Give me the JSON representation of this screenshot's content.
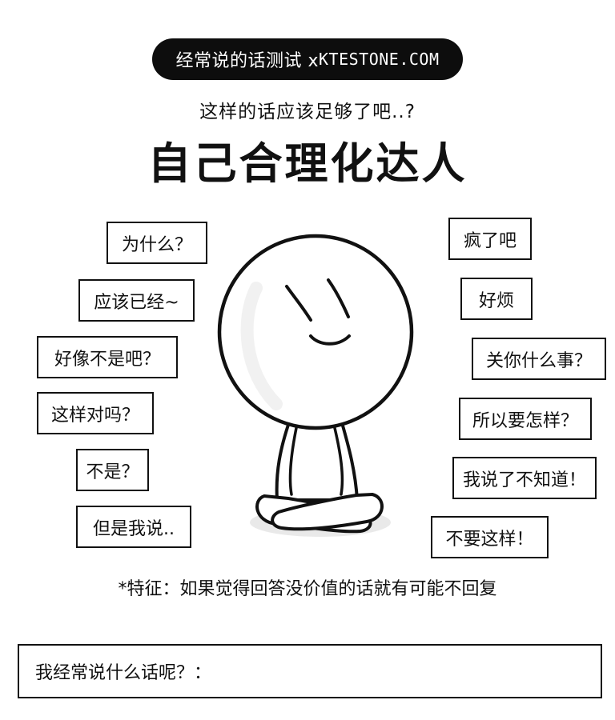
{
  "header": {
    "pill_prefix": "经常说的话测试 x ",
    "pill_brand": "KTESTONE.COM"
  },
  "subtitle": "这样的话应该足够了吧..?",
  "title": "自己合理化达人",
  "left_phrases": [
    "为什么？",
    "应该已经~",
    "好像不是吧？",
    "这样对吗？",
    "不是？",
    "但是我说.."
  ],
  "right_phrases": [
    "疯了吧",
    "好烦",
    "关你什么事？",
    "所以要怎样？",
    "我说了不知道！",
    "不要这样！"
  ],
  "note": "*特征：如果觉得回答没价值的话就有可能不回复",
  "answer_prompt": "我经常说什么话呢？："
}
